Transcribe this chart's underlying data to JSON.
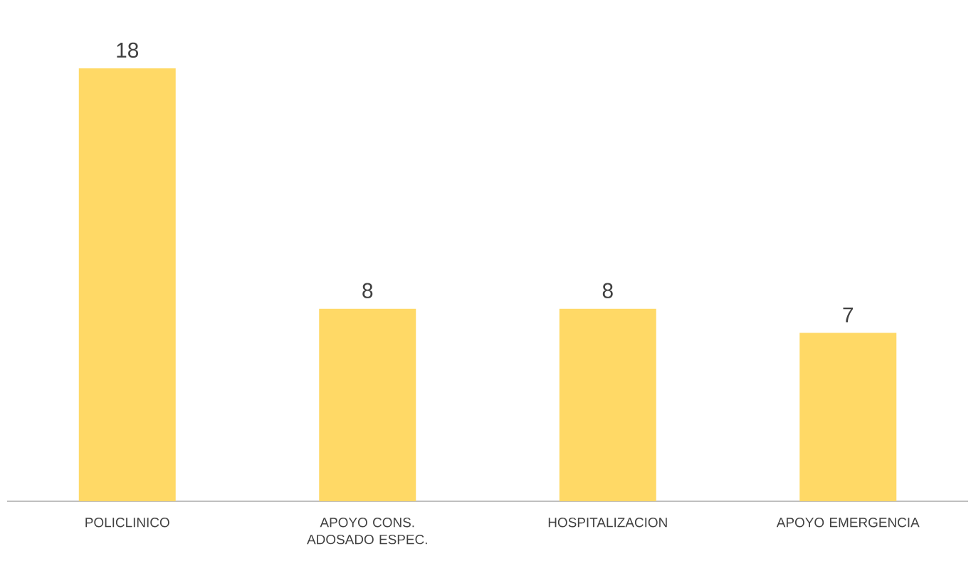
{
  "chart_data": {
    "type": "bar",
    "categories": [
      "POLICLINICO",
      "APOYO CONS. ADOSADO ESPEC.",
      "HOSPITALIZACION",
      "APOYO EMERGENCIA"
    ],
    "values": [
      18,
      8,
      8,
      7
    ],
    "color": "#ffd966",
    "data_labels": true
  }
}
